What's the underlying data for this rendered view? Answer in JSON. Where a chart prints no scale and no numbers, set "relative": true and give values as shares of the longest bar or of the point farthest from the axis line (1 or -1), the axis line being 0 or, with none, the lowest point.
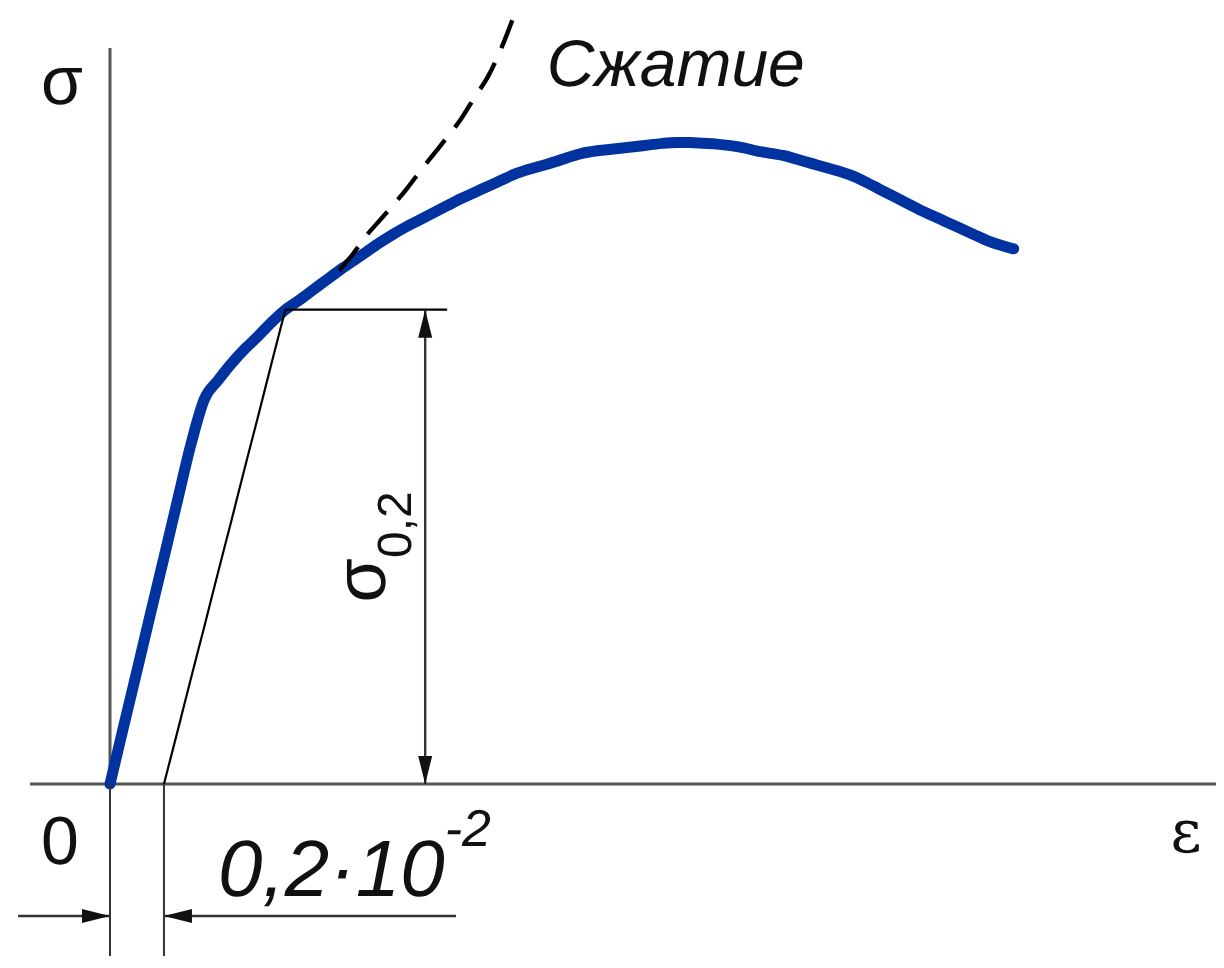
{
  "chart_data": {
    "type": "line",
    "relative": true,
    "xlabel": "ε",
    "ylabel": "σ",
    "categories": [
      null,
      null,
      null,
      null,
      null,
      null,
      null,
      null,
      null,
      null,
      null,
      null,
      null,
      null,
      null,
      null,
      null,
      null,
      null,
      null,
      null,
      null,
      null,
      null,
      null,
      null,
      null,
      null,
      null,
      null,
      null,
      null,
      null,
      null,
      null,
      null,
      null,
      null,
      null,
      null,
      null,
      null,
      null,
      null,
      null,
      null,
      null,
      null,
      null,
      null,
      null,
      null,
      null,
      null,
      null,
      null,
      null,
      null,
      null,
      null,
      null,
      null,
      null,
      null,
      null,
      null,
      null,
      null,
      null,
      null,
      null,
      null,
      null,
      null,
      null,
      null,
      null,
      null,
      null,
      null,
      null,
      null,
      null
    ],
    "series": [
      {
        "color": "#0033a0",
        "values": [
          0,
          0.074,
          0.147,
          0.221,
          0.294,
          0.368,
          0.441,
          0.5,
          0.524,
          0.546,
          0.565,
          0.582,
          0.6,
          0.616,
          0.628,
          0.641,
          0.654,
          0.667,
          0.679,
          0.691,
          0.703,
          0.714,
          0.724,
          0.733,
          0.742,
          0.751,
          0.76,
          0.768,
          0.776,
          0.784,
          0.792,
          0.798,
          0.803,
          0.808,
          0.814,
          0.819,
          0.822,
          0.824,
          0.826,
          0.828,
          0.83,
          0.832,
          0.833,
          0.833,
          0.832,
          0.831,
          0.829,
          0.826,
          0.822,
          0.819,
          0.816,
          0.811,
          0.806,
          0.801,
          0.796,
          0.79,
          0.782,
          0.773,
          0.764,
          0.755,
          0.746,
          0.738,
          0.73,
          0.722,
          0.714,
          0.706,
          0.7,
          0.695,
          null,
          null,
          null,
          null,
          null,
          null,
          null,
          null,
          null,
          null,
          null,
          null,
          null,
          null,
          null
        ]
      },
      {
        "name": "Сжатие",
        "color": "#000000",
        "line_style": "dashed",
        "values": [
          null,
          null,
          null,
          null,
          null,
          null,
          null,
          null,
          null,
          null,
          null,
          null,
          null,
          null,
          null,
          null,
          null,
          0.667,
          0.688,
          0.712,
          0.732,
          0.752,
          0.773,
          0.796,
          0.818,
          0.84,
          0.863,
          0.891,
          0.918,
          0.955,
          1,
          null,
          null,
          null,
          null,
          null,
          null,
          null,
          null,
          null,
          null,
          null,
          null,
          null,
          null,
          null,
          null,
          null,
          null,
          null,
          null,
          null,
          null,
          null,
          null,
          null,
          null,
          null,
          null,
          null,
          null,
          null,
          null,
          null,
          null,
          null,
          null,
          null,
          null,
          null,
          null,
          null,
          null,
          null,
          null,
          null,
          null,
          null,
          null,
          null,
          null,
          null,
          null
        ]
      },
      {
        "color": "#000000",
        "values": [
          null,
          null,
          null,
          null,
          0,
          0.068,
          0.137,
          0.205,
          0.274,
          0.342,
          0.411,
          0.479,
          0.548,
          0.616,
          null,
          null,
          null,
          null,
          null,
          null,
          null,
          null,
          null,
          null,
          null,
          null,
          null,
          null,
          null,
          null,
          null,
          null,
          null,
          null,
          null,
          null,
          null,
          null,
          null,
          null,
          null,
          null,
          null,
          null,
          null,
          null,
          null,
          null,
          null,
          null,
          null,
          null,
          null,
          null,
          null,
          null,
          null,
          null,
          null,
          null,
          null,
          null,
          null,
          null,
          null,
          null,
          null,
          null,
          null,
          null,
          null,
          null,
          null,
          null,
          null,
          null,
          null,
          null,
          null,
          null,
          null,
          null,
          null
        ]
      },
      {
        "color": "#000000",
        "values": [
          null,
          null,
          null,
          null,
          null,
          null,
          null,
          null,
          null,
          null,
          null,
          null,
          null,
          0.616,
          0.616,
          0.616,
          0.616,
          0.616,
          0.616,
          0.616,
          0.616,
          0.616,
          0.616,
          0.616,
          0.616,
          0.616,
          null,
          null,
          null,
          null,
          null,
          null,
          null,
          null,
          null,
          null,
          null,
          null,
          null,
          null,
          null,
          null,
          null,
          null,
          null,
          null,
          null,
          null,
          null,
          null,
          null,
          null,
          null,
          null,
          null,
          null,
          null,
          null,
          null,
          null,
          null,
          null,
          null,
          null,
          null,
          null,
          null,
          null,
          null,
          null,
          null,
          null,
          null,
          null,
          null,
          null,
          null,
          null,
          null,
          null,
          null,
          null,
          null
        ]
      }
    ],
    "annotations": [
      "0",
      "0,2·10$^{-2}$",
      {
        "text": "σ$_{0,2}$",
        "y": 0.616
      }
    ]
  }
}
